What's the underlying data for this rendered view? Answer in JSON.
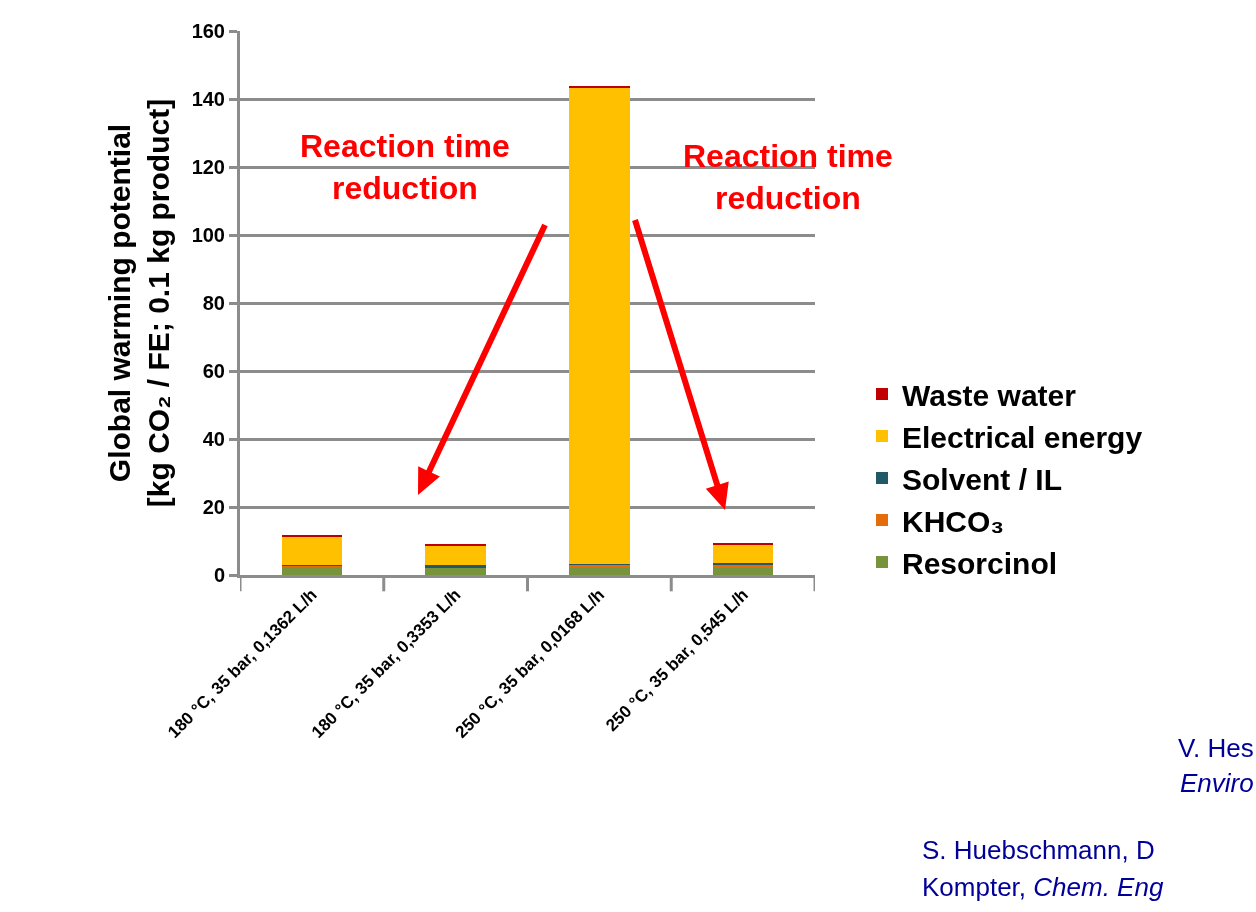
{
  "chart_data": {
    "type": "bar",
    "stacked": true,
    "ylabel": "Global warming potential\n[kg CO₂ / FE; 0.1 kg product]",
    "categories": [
      "180 °C, 35 bar, 0,1362 L/h",
      "180 °C, 35 bar, 0,3353 L/h",
      "250 °C, 35 bar, 0,0168 L/h",
      "250 °C, 35 bar, 0,545 L/h"
    ],
    "series": [
      {
        "name": "Resorcinol",
        "color": "#77933c",
        "values": [
          2.4,
          2.2,
          2.0,
          2.2
        ]
      },
      {
        "name": "KHCO₃",
        "color": "#e46c0a",
        "values": [
          0.3,
          0.1,
          1.0,
          0.6
        ]
      },
      {
        "name": "Solvent / IL",
        "color": "#215968",
        "values": [
          0.1,
          0.5,
          0.1,
          0.6
        ]
      },
      {
        "name": "Electrical energy",
        "color": "#ffc000",
        "values": [
          8.5,
          5.8,
          140.2,
          5.5
        ]
      },
      {
        "name": "Waste water",
        "color": "#c00000",
        "values": [
          0.5,
          0.5,
          0.5,
          0.5
        ]
      }
    ],
    "ylim": [
      0,
      160
    ],
    "yticks": [
      0,
      20,
      40,
      60,
      80,
      100,
      120,
      140,
      160
    ],
    "grid": "y",
    "legend": "right",
    "annotations": [
      "Reaction time\nreduction",
      "Reaction time\nreduction",
      "V. Hes",
      "Enviro",
      "S. Huebschmann, D",
      "Kompter, Chem. Eng"
    ]
  }
}
